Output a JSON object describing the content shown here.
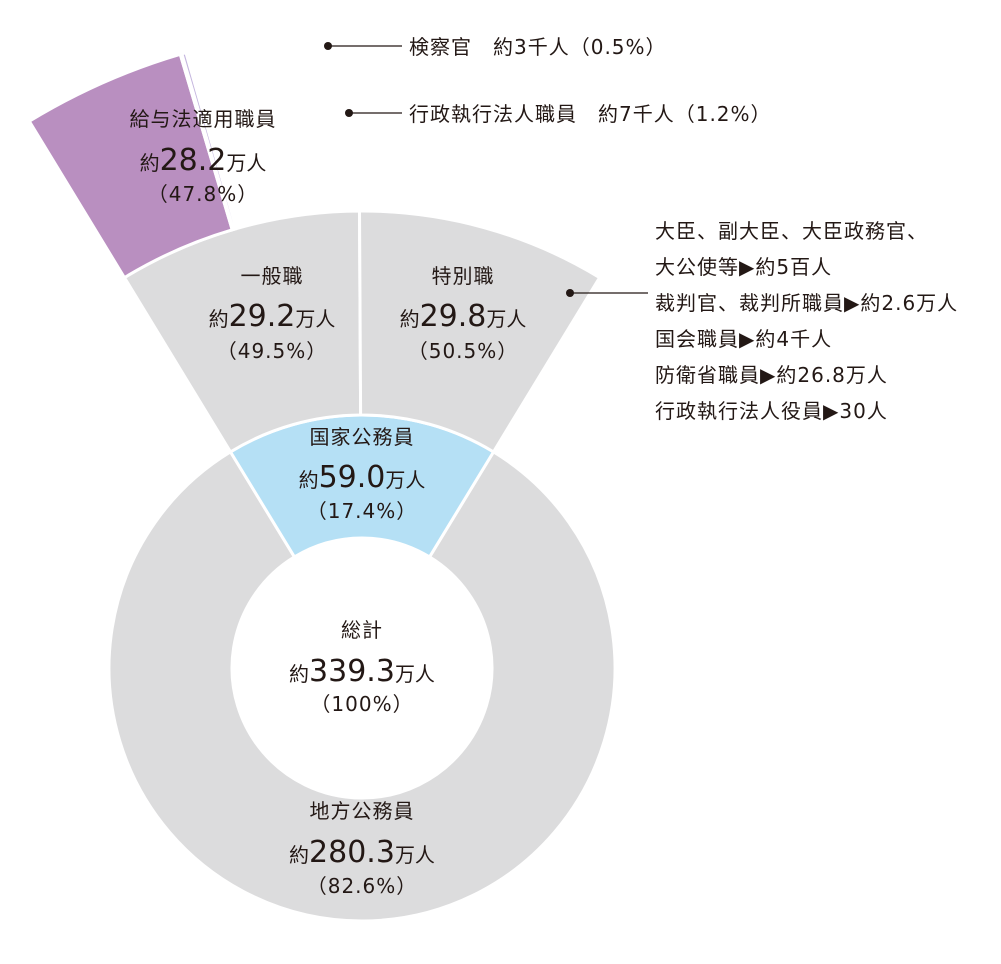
{
  "colors": {
    "grey": "#dcdcdd",
    "light_blue": "#b5e0f5",
    "purple_main": "#b98fc0",
    "purple_dark": "#b070b0",
    "purple_light": "#c4b5de",
    "text": "#231815"
  },
  "chart_data": {
    "type": "pie",
    "title": "",
    "unit": "万人",
    "rings": [
      {
        "level": "total",
        "segments": [
          {
            "name": "総計",
            "value": 339.3,
            "percent": 100
          }
        ]
      },
      {
        "level": "public_servants",
        "segments": [
          {
            "name": "国家公務員",
            "value": 59.0,
            "percent": 17.4
          },
          {
            "name": "地方公務員",
            "value": 280.3,
            "percent": 82.6
          }
        ]
      },
      {
        "level": "national_breakdown",
        "segments": [
          {
            "name": "一般職",
            "value": 29.2,
            "percent": 49.5
          },
          {
            "name": "特別職",
            "value": 29.8,
            "percent": 50.5
          }
        ]
      },
      {
        "level": "general_breakdown",
        "segments": [
          {
            "name": "給与法適用職員",
            "value": 28.2,
            "percent": 47.8
          },
          {
            "name": "検察官",
            "value": 0.3,
            "percent": 0.5
          },
          {
            "name": "行政執行法人職員",
            "value": 0.7,
            "percent": 1.2
          }
        ]
      }
    ]
  },
  "labels": {
    "center": {
      "name": "総計",
      "prefix": "約",
      "number": "339.3",
      "unit": "万人",
      "pct": "（100%）"
    },
    "national": {
      "name": "国家公務員",
      "prefix": "約",
      "number": "59.0",
      "unit": "万人",
      "pct": "（17.4%）"
    },
    "local": {
      "name": "地方公務員",
      "prefix": "約",
      "number": "280.3",
      "unit": "万人",
      "pct": "（82.6%）"
    },
    "general": {
      "name": "一般職",
      "prefix": "約",
      "number": "29.2",
      "unit": "万人",
      "pct": "（49.5%）"
    },
    "special": {
      "name": "特別職",
      "prefix": "約",
      "number": "29.8",
      "unit": "万人",
      "pct": "（50.5%）"
    },
    "salary_act": {
      "name": "給与法適用職員",
      "prefix": "約",
      "number": "28.2",
      "unit": "万人",
      "pct": "（47.8%）"
    }
  },
  "callouts": {
    "prosecutors": "検察官　約3千人（0.5%）",
    "admin_agency": "行政執行法人職員　約7千人（1.2%）",
    "special_lines": [
      "大臣、副大臣、大臣政務官、",
      "大公使等▶約5百人",
      "裁判官、裁判所職員▶約2.6万人",
      "国会職員▶約4千人",
      "防衛省職員▶約26.8万人",
      "行政執行法人役員▶30人"
    ]
  }
}
